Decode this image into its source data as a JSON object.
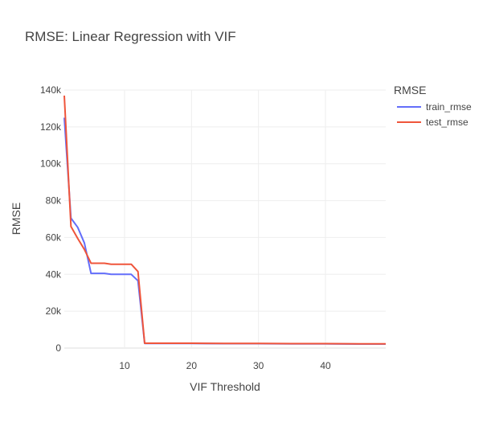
{
  "chart_data": {
    "type": "line",
    "title": "RMSE: Linear Regression with VIF",
    "xlabel": "VIF Threshold",
    "ylabel": "RMSE",
    "xlim": [
      1,
      49
    ],
    "ylim": [
      0,
      140000
    ],
    "xticks": [
      10,
      20,
      30,
      40
    ],
    "yticks": [
      0,
      20000,
      40000,
      60000,
      80000,
      100000,
      120000,
      140000
    ],
    "ytick_labels": [
      "0",
      "20k",
      "40k",
      "60k",
      "80k",
      "100k",
      "120k",
      "140k"
    ],
    "grid": true,
    "legend": {
      "title": "RMSE",
      "placement": "top-right"
    },
    "series": [
      {
        "name": "train_rmse",
        "color": "#636efa",
        "x": [
          1,
          2,
          3,
          4,
          5,
          6,
          7,
          8,
          9,
          10,
          11,
          12,
          13,
          14,
          15,
          20,
          25,
          30,
          35,
          40,
          45,
          49
        ],
        "y": [
          125000,
          70500,
          65500,
          57000,
          40500,
          40500,
          40500,
          40000,
          40000,
          40000,
          40000,
          36500,
          2500,
          2500,
          2500,
          2500,
          2400,
          2400,
          2300,
          2300,
          2200,
          2200
        ]
      },
      {
        "name": "test_rmse",
        "color": "#ef553b",
        "x": [
          1,
          2,
          3,
          4,
          5,
          6,
          7,
          8,
          9,
          10,
          11,
          12,
          13,
          14,
          15,
          20,
          25,
          30,
          35,
          40,
          45,
          49
        ],
        "y": [
          137000,
          66000,
          59500,
          53500,
          46000,
          46000,
          46000,
          45500,
          45500,
          45500,
          45500,
          41500,
          2600,
          2600,
          2600,
          2600,
          2500,
          2500,
          2400,
          2400,
          2300,
          2300
        ]
      }
    ]
  }
}
